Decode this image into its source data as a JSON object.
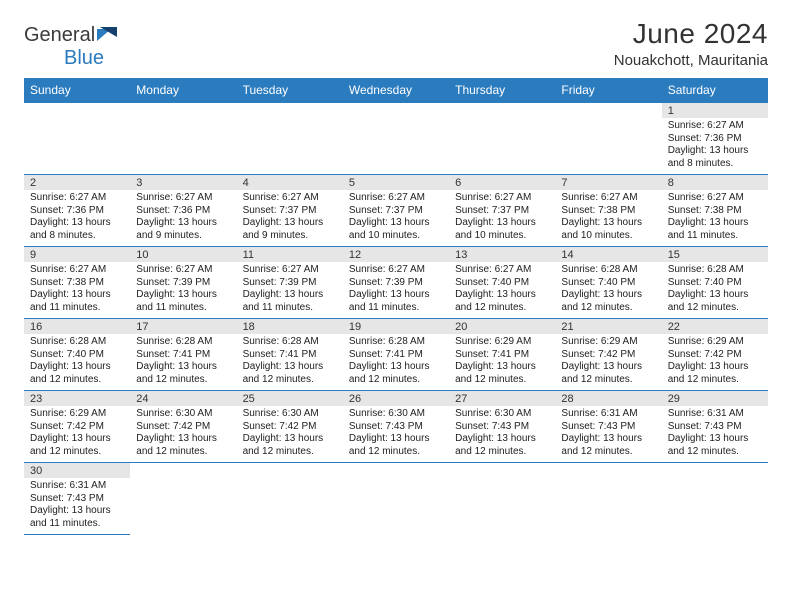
{
  "brand": {
    "name_a": "General",
    "name_b": "Blue"
  },
  "title": "June 2024",
  "location": "Nouakchott, Mauritania",
  "colors": {
    "header_bg": "#2b7bbf",
    "header_fg": "#ffffff",
    "num_bg": "#e6e6e6",
    "border": "#2b7bbf"
  },
  "day_names": [
    "Sunday",
    "Monday",
    "Tuesday",
    "Wednesday",
    "Thursday",
    "Friday",
    "Saturday"
  ],
  "weeks": [
    [
      null,
      null,
      null,
      null,
      null,
      null,
      {
        "n": "1",
        "sr": "Sunrise: 6:27 AM",
        "ss": "Sunset: 7:36 PM",
        "dl": "Daylight: 13 hours and 8 minutes."
      }
    ],
    [
      {
        "n": "2",
        "sr": "Sunrise: 6:27 AM",
        "ss": "Sunset: 7:36 PM",
        "dl": "Daylight: 13 hours and 8 minutes."
      },
      {
        "n": "3",
        "sr": "Sunrise: 6:27 AM",
        "ss": "Sunset: 7:36 PM",
        "dl": "Daylight: 13 hours and 9 minutes."
      },
      {
        "n": "4",
        "sr": "Sunrise: 6:27 AM",
        "ss": "Sunset: 7:37 PM",
        "dl": "Daylight: 13 hours and 9 minutes."
      },
      {
        "n": "5",
        "sr": "Sunrise: 6:27 AM",
        "ss": "Sunset: 7:37 PM",
        "dl": "Daylight: 13 hours and 10 minutes."
      },
      {
        "n": "6",
        "sr": "Sunrise: 6:27 AM",
        "ss": "Sunset: 7:37 PM",
        "dl": "Daylight: 13 hours and 10 minutes."
      },
      {
        "n": "7",
        "sr": "Sunrise: 6:27 AM",
        "ss": "Sunset: 7:38 PM",
        "dl": "Daylight: 13 hours and 10 minutes."
      },
      {
        "n": "8",
        "sr": "Sunrise: 6:27 AM",
        "ss": "Sunset: 7:38 PM",
        "dl": "Daylight: 13 hours and 11 minutes."
      }
    ],
    [
      {
        "n": "9",
        "sr": "Sunrise: 6:27 AM",
        "ss": "Sunset: 7:38 PM",
        "dl": "Daylight: 13 hours and 11 minutes."
      },
      {
        "n": "10",
        "sr": "Sunrise: 6:27 AM",
        "ss": "Sunset: 7:39 PM",
        "dl": "Daylight: 13 hours and 11 minutes."
      },
      {
        "n": "11",
        "sr": "Sunrise: 6:27 AM",
        "ss": "Sunset: 7:39 PM",
        "dl": "Daylight: 13 hours and 11 minutes."
      },
      {
        "n": "12",
        "sr": "Sunrise: 6:27 AM",
        "ss": "Sunset: 7:39 PM",
        "dl": "Daylight: 13 hours and 11 minutes."
      },
      {
        "n": "13",
        "sr": "Sunrise: 6:27 AM",
        "ss": "Sunset: 7:40 PM",
        "dl": "Daylight: 13 hours and 12 minutes."
      },
      {
        "n": "14",
        "sr": "Sunrise: 6:28 AM",
        "ss": "Sunset: 7:40 PM",
        "dl": "Daylight: 13 hours and 12 minutes."
      },
      {
        "n": "15",
        "sr": "Sunrise: 6:28 AM",
        "ss": "Sunset: 7:40 PM",
        "dl": "Daylight: 13 hours and 12 minutes."
      }
    ],
    [
      {
        "n": "16",
        "sr": "Sunrise: 6:28 AM",
        "ss": "Sunset: 7:40 PM",
        "dl": "Daylight: 13 hours and 12 minutes."
      },
      {
        "n": "17",
        "sr": "Sunrise: 6:28 AM",
        "ss": "Sunset: 7:41 PM",
        "dl": "Daylight: 13 hours and 12 minutes."
      },
      {
        "n": "18",
        "sr": "Sunrise: 6:28 AM",
        "ss": "Sunset: 7:41 PM",
        "dl": "Daylight: 13 hours and 12 minutes."
      },
      {
        "n": "19",
        "sr": "Sunrise: 6:28 AM",
        "ss": "Sunset: 7:41 PM",
        "dl": "Daylight: 13 hours and 12 minutes."
      },
      {
        "n": "20",
        "sr": "Sunrise: 6:29 AM",
        "ss": "Sunset: 7:41 PM",
        "dl": "Daylight: 13 hours and 12 minutes."
      },
      {
        "n": "21",
        "sr": "Sunrise: 6:29 AM",
        "ss": "Sunset: 7:42 PM",
        "dl": "Daylight: 13 hours and 12 minutes."
      },
      {
        "n": "22",
        "sr": "Sunrise: 6:29 AM",
        "ss": "Sunset: 7:42 PM",
        "dl": "Daylight: 13 hours and 12 minutes."
      }
    ],
    [
      {
        "n": "23",
        "sr": "Sunrise: 6:29 AM",
        "ss": "Sunset: 7:42 PM",
        "dl": "Daylight: 13 hours and 12 minutes."
      },
      {
        "n": "24",
        "sr": "Sunrise: 6:30 AM",
        "ss": "Sunset: 7:42 PM",
        "dl": "Daylight: 13 hours and 12 minutes."
      },
      {
        "n": "25",
        "sr": "Sunrise: 6:30 AM",
        "ss": "Sunset: 7:42 PM",
        "dl": "Daylight: 13 hours and 12 minutes."
      },
      {
        "n": "26",
        "sr": "Sunrise: 6:30 AM",
        "ss": "Sunset: 7:43 PM",
        "dl": "Daylight: 13 hours and 12 minutes."
      },
      {
        "n": "27",
        "sr": "Sunrise: 6:30 AM",
        "ss": "Sunset: 7:43 PM",
        "dl": "Daylight: 13 hours and 12 minutes."
      },
      {
        "n": "28",
        "sr": "Sunrise: 6:31 AM",
        "ss": "Sunset: 7:43 PM",
        "dl": "Daylight: 13 hours and 12 minutes."
      },
      {
        "n": "29",
        "sr": "Sunrise: 6:31 AM",
        "ss": "Sunset: 7:43 PM",
        "dl": "Daylight: 13 hours and 12 minutes."
      }
    ],
    [
      {
        "n": "30",
        "sr": "Sunrise: 6:31 AM",
        "ss": "Sunset: 7:43 PM",
        "dl": "Daylight: 13 hours and 11 minutes."
      },
      null,
      null,
      null,
      null,
      null,
      null
    ]
  ]
}
